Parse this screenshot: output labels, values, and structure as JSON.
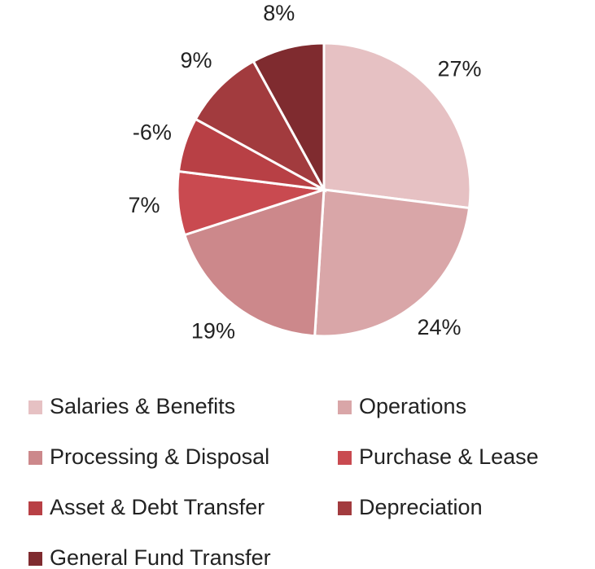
{
  "chart_data": {
    "type": "pie",
    "categories": [
      "Salaries & Benefits",
      "Operations",
      "Processing & Disposal",
      "Purchase & Lease",
      "Asset & Debt Transfer",
      "Depreciation",
      "General Fund Transfer"
    ],
    "values": [
      27,
      24,
      19,
      7,
      -6,
      9,
      8
    ],
    "value_labels": [
      "27%",
      "24%",
      "19%",
      "7%",
      "-6%",
      "9%",
      "8%"
    ],
    "colors": [
      "#e6c1c3",
      "#d9a6a8",
      "#cc888b",
      "#c94a50",
      "#b84045",
      "#a23b3e",
      "#7f2b2f"
    ],
    "legend": "bottom"
  }
}
